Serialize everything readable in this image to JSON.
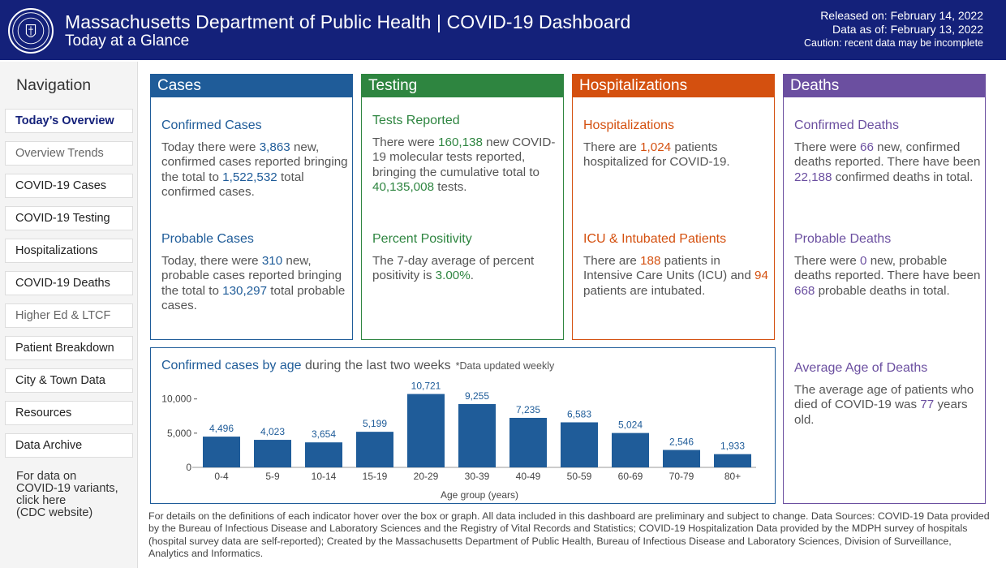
{
  "header": {
    "title": "Massachusetts Department of Public Health  |  COVID-19 Dashboard",
    "subtitle": "Today at a Glance",
    "released": "Released on: February 14, 2022",
    "data_as_of": "Data as of: February 13, 2022",
    "caution": "Caution: recent data may be incomplete",
    "accent": "#14217a"
  },
  "nav": {
    "title": "Navigation",
    "items": [
      {
        "label": "Today’s Overview"
      },
      {
        "label": "Overview Trends"
      },
      {
        "label": "COVID-19 Cases"
      },
      {
        "label": "COVID-19 Testing"
      },
      {
        "label": "Hospitalizations"
      },
      {
        "label": "COVID-19 Deaths"
      },
      {
        "label": "Higher Ed & LTCF"
      },
      {
        "label": "Patient Breakdown"
      },
      {
        "label": "City & Town Data"
      },
      {
        "label": "Resources"
      },
      {
        "label": "Data Archive"
      }
    ],
    "footer_lines": [
      "For data on",
      "COVID-19 variants,",
      "click here",
      "(CDC website)"
    ]
  },
  "cases": {
    "title": "Cases",
    "color": "#1f5c99",
    "confirmed": {
      "title": "Confirmed Cases",
      "t1": "Today there were ",
      "new": "3,863",
      "t2": " new, confirmed cases reported bringing the total to ",
      "total": "1,522,532",
      "t3": " total confirmed cases."
    },
    "probable": {
      "title": "Probable Cases",
      "t1": "Today, there were ",
      "new": "310",
      "t2": " new, probable cases reported bringing the total to ",
      "total": "130,297",
      "t3": " total probable cases."
    }
  },
  "testing": {
    "title": "Testing",
    "color": "#2e8540",
    "reported": {
      "title": "Tests Reported",
      "t1": "There were ",
      "new": "160,138",
      "t2": " new COVID-19 molecular tests reported, bringing the cumulative total to ",
      "total": "40,135,008",
      "t3": " tests."
    },
    "positivity": {
      "title": "Percent Positivity",
      "t1": "The 7-day average of percent positivity is ",
      "value": "3.00%",
      "t2": "."
    }
  },
  "hospitalizations": {
    "title": "Hospitalizations",
    "color": "#d4500f",
    "hosp": {
      "title": "Hospitalizations",
      "t1": "There are ",
      "value": "1,024",
      "t2": " patients hospitalized for COVID-19."
    },
    "icu": {
      "title": "ICU & Intubated Patients",
      "t1": "There are ",
      "icu": "188",
      "t2": " patients in Intensive Care Units (ICU) and ",
      "intubated": "94",
      "t3": " patients are intubated."
    }
  },
  "deaths": {
    "title": "Deaths",
    "color": "#6b4fa0",
    "confirmed": {
      "title": "Confirmed Deaths",
      "t1": "There were ",
      "new": "66",
      "t2": " new, confirmed deaths reported. There have been ",
      "total": "22,188",
      "t3": " confirmed deaths in total."
    },
    "probable": {
      "title": "Probable Deaths",
      "t1": "There were ",
      "new": "0",
      "t2": " new, probable deaths reported. There have been ",
      "total": "668",
      "t3": " probable deaths in total."
    },
    "avg_age": {
      "title": "Average Age of Deaths",
      "t1": "The average age of patients who died of COVID-19 was ",
      "value": "77",
      "t2": " years old."
    }
  },
  "chart": {
    "title_hl": "Confirmed cases by age",
    "title_rest": " during the last two weeks",
    "note": "*Data updated weekly"
  },
  "chart_data": {
    "type": "bar",
    "title": "Confirmed cases by age during the last two weeks",
    "xlabel": "Age group (years)",
    "ylabel": "",
    "categories": [
      "0-4",
      "5-9",
      "10-14",
      "15-19",
      "20-29",
      "30-39",
      "40-49",
      "50-59",
      "60-69",
      "70-79",
      "80+"
    ],
    "values": [
      4496,
      4023,
      3654,
      5199,
      10721,
      9255,
      7235,
      6583,
      5024,
      2546,
      1933
    ],
    "labels": [
      "4,496",
      "4,023",
      "3,654",
      "5,199",
      "10,721",
      "9,255",
      "7,235",
      "6,583",
      "5,024",
      "2,546",
      "1,933"
    ],
    "yticks": [
      0,
      5000,
      10000
    ],
    "ytick_labels": [
      "0",
      "5,000",
      "10,000"
    ],
    "ylim": [
      0,
      11500
    ],
    "bar_color": "#1f5c99",
    "grid": false,
    "legend": "none"
  },
  "footer": {
    "text": "For details on the definitions of each indicator hover over the box or graph. All data included in this dashboard are preliminary and subject to change. Data Sources: COVID-19 Data provided by the Bureau of Infectious Disease and Laboratory Sciences and the Registry of Vital Records and Statistics; COVID-19 Hospitalization Data provided by the MDPH survey of hospitals (hospital survey data are self-reported); Created by the Massachusetts Department of Public Health, Bureau of Infectious Disease and Laboratory Sciences, Division of Surveillance, Analytics and Informatics."
  }
}
